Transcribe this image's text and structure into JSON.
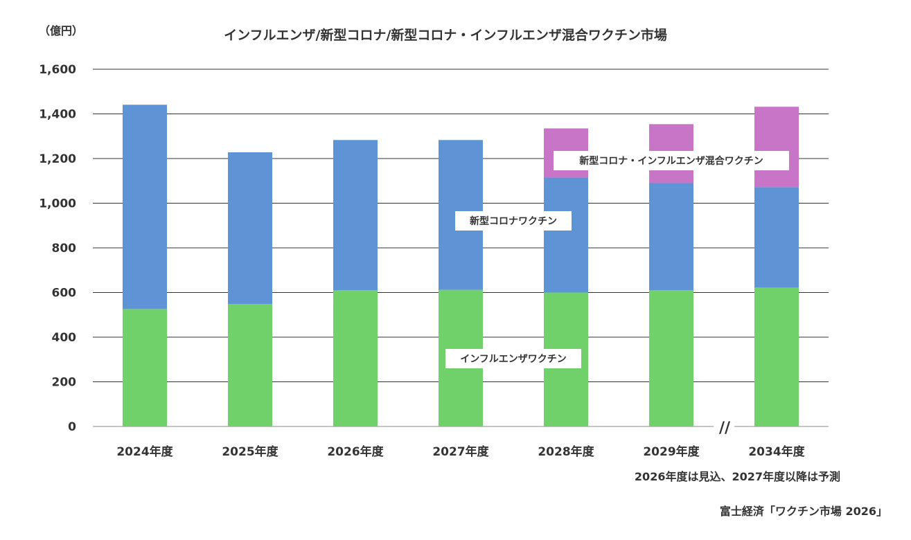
{
  "chart_data": {
    "type": "bar",
    "stacked": true,
    "title": "インフルエンザ/新型コロナ/新型コロナ・インフルエンザ混合ワクチン市場",
    "unit_label": "（億円）",
    "categories": [
      "2024年度",
      "2025年度",
      "2026年度",
      "2027年度",
      "2028年度",
      "2029年度",
      "2034年度"
    ],
    "series": [
      {
        "name": "インフルエンザワクチン",
        "color": "#70d16a",
        "values": [
          526,
          548,
          610,
          612,
          600,
          610,
          622
        ]
      },
      {
        "name": "新型コロナワクチン",
        "color": "#5e93d5",
        "values": [
          915,
          680,
          673,
          671,
          515,
          480,
          450
        ]
      },
      {
        "name": "新型コロナ・インフルエンザ混合ワクチン",
        "color": "#c875c7",
        "values": [
          0,
          0,
          0,
          0,
          220,
          264,
          360
        ]
      }
    ],
    "ylim": [
      0,
      1600
    ],
    "yticks": [
      0,
      200,
      400,
      600,
      800,
      1000,
      1200,
      1400,
      1600
    ],
    "ytick_labels": [
      "0",
      "200",
      "400",
      "600",
      "800",
      "1,000",
      "1,200",
      "1,400",
      "1,600"
    ],
    "grid": true,
    "axis_break_marker": "//",
    "legend": "inline-labels"
  },
  "notes": {
    "forecast_note": "2026年度は見込、2027年度以降は予測",
    "source": "富士経済「ワクチン市場 2026」"
  }
}
